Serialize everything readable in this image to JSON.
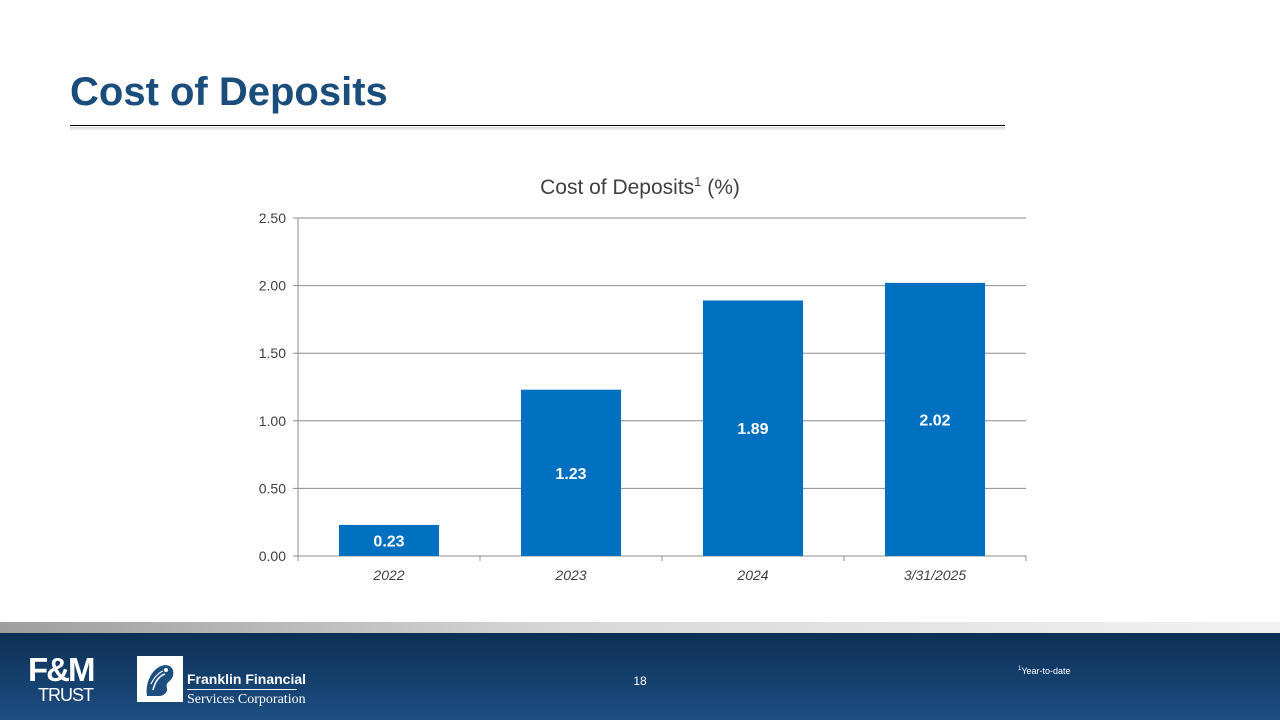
{
  "slide": {
    "title": "Cost of Deposits"
  },
  "chart_data": {
    "type": "bar",
    "title": "Cost of Deposits",
    "title_superscript": "1",
    "title_suffix": " (%)",
    "categories": [
      "2022",
      "2023",
      "2024",
      "3/31/2025"
    ],
    "values": [
      0.23,
      1.23,
      1.89,
      2.02
    ],
    "data_labels": [
      "0.23",
      "1.23",
      "1.89",
      "2.02"
    ],
    "y_ticks": [
      "0.00",
      "0.50",
      "1.00",
      "1.50",
      "2.00",
      "2.50"
    ],
    "ylim": [
      0,
      2.5
    ],
    "xlabel": "",
    "ylabel": "",
    "grid": true,
    "bar_color": "#0070c0"
  },
  "footer": {
    "fm_logo_top": "F&M",
    "fm_logo_bottom": "TRUST",
    "company_line1": "Franklin Financial",
    "company_line2": "Services Corporation",
    "page_number": "18",
    "footnote_marker": "1",
    "footnote_text": "Year-to-date"
  }
}
